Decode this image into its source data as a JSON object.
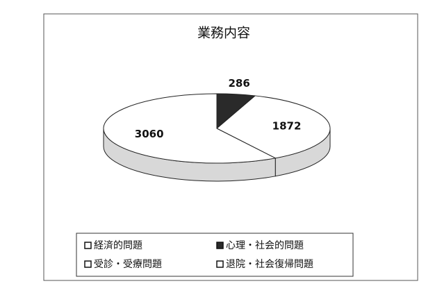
{
  "chart_data": {
    "type": "pie3d",
    "title": "業務内容",
    "categories": [
      "経済的問題",
      "心理・社会的問題",
      "受診・受療問題",
      "退院・社会復帰問題"
    ],
    "values": [
      null,
      286,
      1872,
      3060
    ],
    "colors": [
      "#ffffff",
      "#2a2a2a",
      "#ffffff",
      "#ffffff"
    ],
    "legend": "bottom"
  }
}
